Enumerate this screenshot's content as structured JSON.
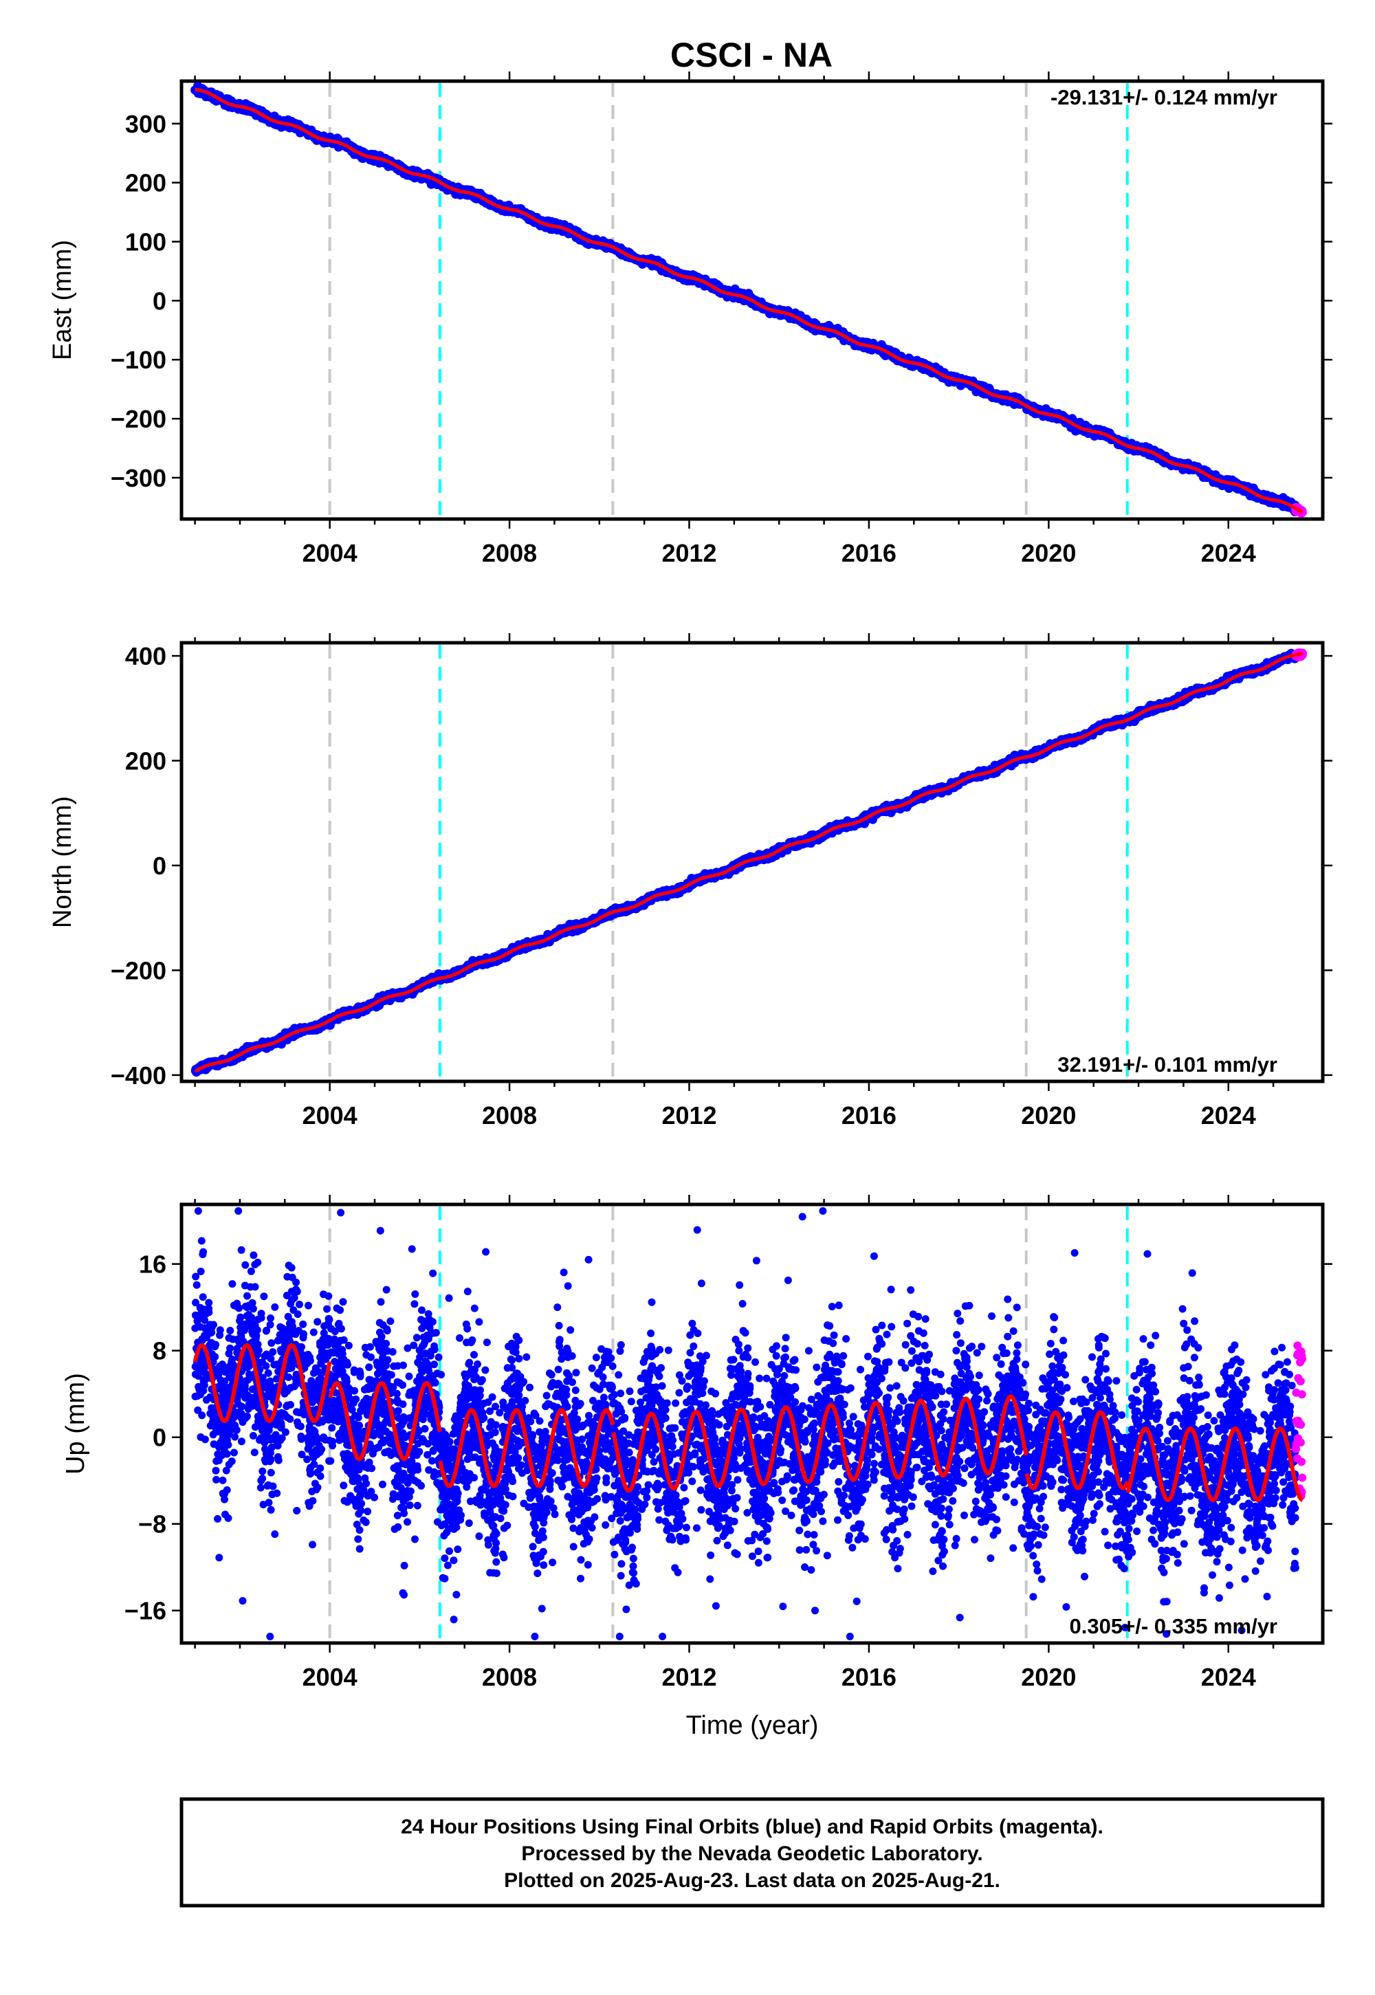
{
  "title": "CSCI - NA",
  "colors": {
    "final_orbits": "#0000ff",
    "rapid_orbits": "#ff00ff",
    "model_fit": "#ff0000",
    "event_gray": "#c8c8c8",
    "event_cyan": "#00ffff"
  },
  "footer": {
    "line1": "24 Hour Positions Using Final Orbits (blue) and Rapid Orbits (magenta).",
    "line2": "Processed by the Nevada Geodetic Laboratory.",
    "line3": "Plotted on 2025-Aug-23. Last data on 2025-Aug-21."
  },
  "chart_data": [
    {
      "type": "scatter",
      "component": "east",
      "ylabel": "East (mm)",
      "xlabel": "",
      "xlim": [
        2000.7,
        2026.1
      ],
      "ylim": [
        -370,
        372
      ],
      "x_ticks": [
        2004,
        2008,
        2012,
        2016,
        2020,
        2024
      ],
      "y_ticks": [
        -300,
        -200,
        -100,
        0,
        100,
        200,
        300
      ],
      "y_tick_labels": [
        "−300",
        "−200",
        "−100",
        "0",
        "100",
        "200",
        "300"
      ],
      "rate_label": "-29.131+/- 0.124 mm/yr",
      "rate_label_position": "top-right",
      "rate_mm_per_yr": -29.131,
      "start": [
        2001.0,
        358
      ],
      "end": [
        2025.6,
        -355
      ],
      "noise_mm": 3,
      "gray_event_lines": [
        2004.0,
        2010.3,
        2019.5
      ],
      "cyan_event_lines": [
        2006.45,
        2021.75
      ],
      "series": [
        {
          "role": "final_orbits",
          "x_range": [
            2001.0,
            2025.5
          ]
        },
        {
          "role": "rapid_orbits",
          "x_range": [
            2025.5,
            2025.65
          ]
        },
        {
          "role": "model_fit"
        }
      ]
    },
    {
      "type": "scatter",
      "component": "north",
      "ylabel": "North (mm)",
      "xlabel": "",
      "xlim": [
        2000.7,
        2026.1
      ],
      "ylim": [
        -412,
        425
      ],
      "x_ticks": [
        2004,
        2008,
        2012,
        2016,
        2020,
        2024
      ],
      "y_ticks": [
        -400,
        -200,
        0,
        200,
        400
      ],
      "y_tick_labels": [
        "−400",
        "−200",
        "0",
        "200",
        "400"
      ],
      "rate_label": "32.191+/- 0.101 mm/yr",
      "rate_label_position": "bottom-right",
      "rate_mm_per_yr": 32.191,
      "start": [
        2001.0,
        -393
      ],
      "end": [
        2025.6,
        405
      ],
      "noise_mm": 3,
      "gray_event_lines": [
        2004.0,
        2010.3,
        2019.5
      ],
      "cyan_event_lines": [
        2006.45,
        2021.75
      ],
      "series": [
        {
          "role": "final_orbits",
          "x_range": [
            2001.0,
            2025.5
          ]
        },
        {
          "role": "rapid_orbits",
          "x_range": [
            2025.5,
            2025.65
          ]
        },
        {
          "role": "model_fit"
        }
      ]
    },
    {
      "type": "scatter",
      "component": "up",
      "ylabel": "Up (mm)",
      "xlabel": "Time (year)",
      "xlim": [
        2000.7,
        2026.1
      ],
      "ylim": [
        -19,
        21.5
      ],
      "x_ticks": [
        2004,
        2008,
        2012,
        2016,
        2020,
        2024
      ],
      "y_ticks": [
        -16,
        -8,
        0,
        8,
        16
      ],
      "y_tick_labels": [
        "−16",
        "−8",
        "0",
        "8",
        "16"
      ],
      "rate_label": "0.305+/- 0.335 mm/yr",
      "rate_label_position": "bottom-right",
      "rate_mm_per_yr": 0.305,
      "noise_mm": 3.6,
      "gray_event_lines": [
        2004.0,
        2010.3,
        2019.5
      ],
      "cyan_event_lines": [
        2006.45,
        2021.75
      ],
      "seasonal_model_segments": [
        {
          "from": 2001.0,
          "to": 2004.0,
          "offset": 5.0,
          "amplitude": 3.5
        },
        {
          "from": 2004.0,
          "to": 2006.45,
          "offset": 1.5,
          "amplitude": 3.5
        },
        {
          "from": 2006.45,
          "to": 2010.3,
          "offset": -1.0,
          "amplitude": 3.5
        },
        {
          "from": 2010.3,
          "to": 2019.5,
          "offset": -1.5,
          "amplitude": 3.5,
          "slope_mm_per_yr": 0.2
        },
        {
          "from": 2019.5,
          "to": 2021.75,
          "offset": -1.2,
          "amplitude": 3.5
        },
        {
          "from": 2021.75,
          "to": 2025.6,
          "offset": -2.5,
          "amplitude": 3.3
        }
      ],
      "series": [
        {
          "role": "final_orbits",
          "x_range": [
            2001.0,
            2025.5
          ]
        },
        {
          "role": "rapid_orbits",
          "x_range": [
            2025.5,
            2025.65
          ],
          "y_range": [
            -6,
            8.5
          ]
        },
        {
          "role": "model_fit"
        }
      ]
    }
  ]
}
